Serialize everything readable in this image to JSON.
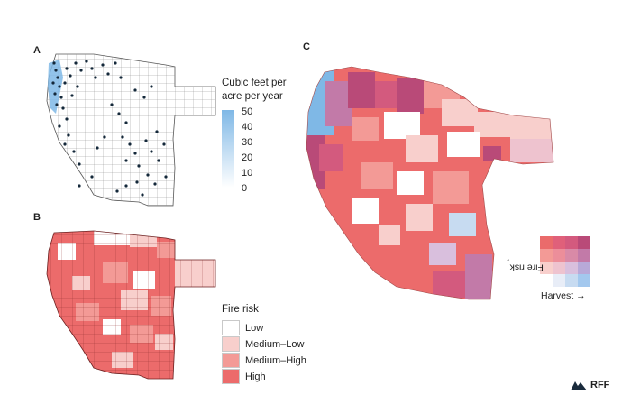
{
  "panels": {
    "a": "A",
    "b": "B",
    "c": "C"
  },
  "colorbar": {
    "title_line1": "Cubic feet per",
    "title_line2": "acre per year",
    "ticks": [
      "50",
      "40",
      "30",
      "20",
      "10",
      "0"
    ],
    "color_top": "#7fb8e6",
    "color_bottom": "#ffffff"
  },
  "fire_risk_legend": {
    "title": "Fire risk",
    "items": [
      {
        "label": "Low",
        "color": "#ffffff"
      },
      {
        "label": "Medium–Low",
        "color": "#f8cfcc"
      },
      {
        "label": "Medium–High",
        "color": "#f39a96"
      },
      {
        "label": "High",
        "color": "#ec6b6b"
      }
    ]
  },
  "bivariate_legend": {
    "y_label": "Fire risk",
    "x_label": "Harvest",
    "colors": [
      [
        "#ea6b6b",
        "#e0607a",
        "#d35a7e",
        "#b94a78"
      ],
      [
        "#f39a96",
        "#ec8e9a",
        "#d98aa7",
        "#c27aa8"
      ],
      [
        "#f8cfcc",
        "#eec3cf",
        "#d9bfdd",
        "#b8a9d8"
      ],
      [
        "#ffffff",
        "#e8edf7",
        "#c7dbf1",
        "#a3c8ee"
      ]
    ]
  },
  "brand": {
    "name": "RFF"
  }
}
